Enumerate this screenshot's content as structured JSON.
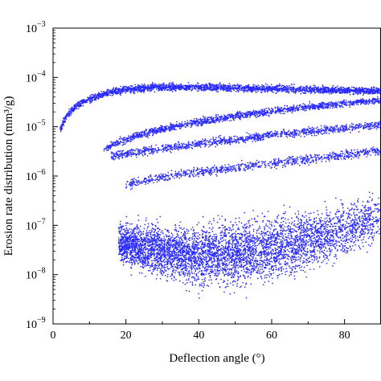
{
  "chart_data": {
    "type": "scatter",
    "xlabel": "Deflection angle (°)",
    "ylabel": "Erosion rate distribution (mm³/g)",
    "x_scale": "linear",
    "y_scale": "log",
    "xlim": [
      0,
      90
    ],
    "ylim": [
      1e-09,
      0.001
    ],
    "x_ticks": [
      {
        "value": 0,
        "label": "0"
      },
      {
        "value": 20,
        "label": "20"
      },
      {
        "value": 40,
        "label": "40"
      },
      {
        "value": 60,
        "label": "60"
      },
      {
        "value": 80,
        "label": "80"
      }
    ],
    "y_ticks": [
      {
        "value": 1e-09,
        "base": "10",
        "exp": "−9"
      },
      {
        "value": 1e-08,
        "base": "10",
        "exp": "−8"
      },
      {
        "value": 1e-07,
        "base": "10",
        "exp": "−7"
      },
      {
        "value": 1e-06,
        "base": "10",
        "exp": "−6"
      },
      {
        "value": 1e-05,
        "base": "10",
        "exp": "−5"
      },
      {
        "value": 0.0001,
        "base": "10",
        "exp": "−4"
      },
      {
        "value": 0.001,
        "base": "10",
        "exp": "−3"
      }
    ],
    "grid": false,
    "marker_color": "#2b2bff",
    "series": [
      {
        "band": 1,
        "x": [
          2,
          3,
          4,
          5,
          6,
          8,
          10,
          12,
          15,
          18,
          20,
          25,
          30,
          35,
          40,
          45,
          50,
          55,
          60,
          65,
          70,
          75,
          80,
          85,
          88,
          90
        ],
        "y": [
          9e-06,
          1.3e-05,
          1.7e-05,
          2.1e-05,
          2.5e-05,
          3.1e-05,
          3.6e-05,
          4.1e-05,
          4.8e-05,
          5.3e-05,
          5.6e-05,
          6.1e-05,
          6.4e-05,
          6.4e-05,
          6.3e-05,
          6.2e-05,
          6.1e-05,
          6e-05,
          5.9e-05,
          5.8e-05,
          5.7e-05,
          5.6e-05,
          5.5e-05,
          5.4e-05,
          5.3e-05,
          5.2e-05
        ]
      },
      {
        "band": 2,
        "x": [
          14,
          18,
          22,
          26,
          30,
          35,
          40,
          45,
          50,
          55,
          60,
          65,
          70,
          75,
          80,
          85,
          90
        ],
        "y": [
          3.5e-06,
          4.8e-06,
          6.2e-06,
          7.5e-06,
          9e-06,
          1.07e-05,
          1.25e-05,
          1.45e-05,
          1.65e-05,
          1.85e-05,
          2.05e-05,
          2.3e-05,
          2.5e-05,
          2.7e-05,
          2.95e-05,
          3.2e-05,
          3.4e-05
        ]
      },
      {
        "band": 3,
        "x": [
          16,
          20,
          25,
          30,
          35,
          40,
          45,
          50,
          55,
          60,
          65,
          70,
          75,
          80,
          85,
          90
        ],
        "y": [
          2.6e-06,
          2.8e-06,
          3.2e-06,
          3.6e-06,
          4e-06,
          4.5e-06,
          5e-06,
          5.5e-06,
          6.1e-06,
          6.8e-06,
          7.4e-06,
          8e-06,
          8.6e-06,
          9.3e-06,
          1e-05,
          1.1e-05
        ]
      },
      {
        "band": 4,
        "x": [
          20,
          25,
          30,
          35,
          40,
          45,
          50,
          55,
          60,
          65,
          70,
          75,
          80,
          85,
          90
        ],
        "y": [
          6.5e-07,
          8e-07,
          9.5e-07,
          1.1e-06,
          1.2e-06,
          1.35e-06,
          1.5e-06,
          1.65e-06,
          1.8e-06,
          2e-06,
          2.2e-06,
          2.4e-06,
          2.7e-06,
          3e-06,
          3.3e-06
        ]
      },
      {
        "band": "cloud",
        "x": [
          18,
          20,
          25,
          30,
          35,
          40,
          45,
          50,
          55,
          60,
          65,
          70,
          75,
          80,
          85,
          90
        ],
        "y_upper": [
          3e-07,
          3e-07,
          3.3e-07,
          3.6e-07,
          4e-07,
          4.5e-07,
          5e-07,
          5.6e-07,
          6.2e-07,
          6.8e-07,
          7.5e-07,
          8.3e-07,
          9e-07,
          1e-06,
          1.2e-06,
          1.4e-06
        ],
        "y_lower": [
          1.2e-08,
          1e-08,
          7e-09,
          5e-09,
          4e-09,
          3e-09,
          3e-09,
          3e-09,
          3.5e-09,
          4e-09,
          5e-09,
          6.5e-09,
          9e-09,
          1.3e-08,
          2e-08,
          3e-08
        ]
      }
    ]
  }
}
